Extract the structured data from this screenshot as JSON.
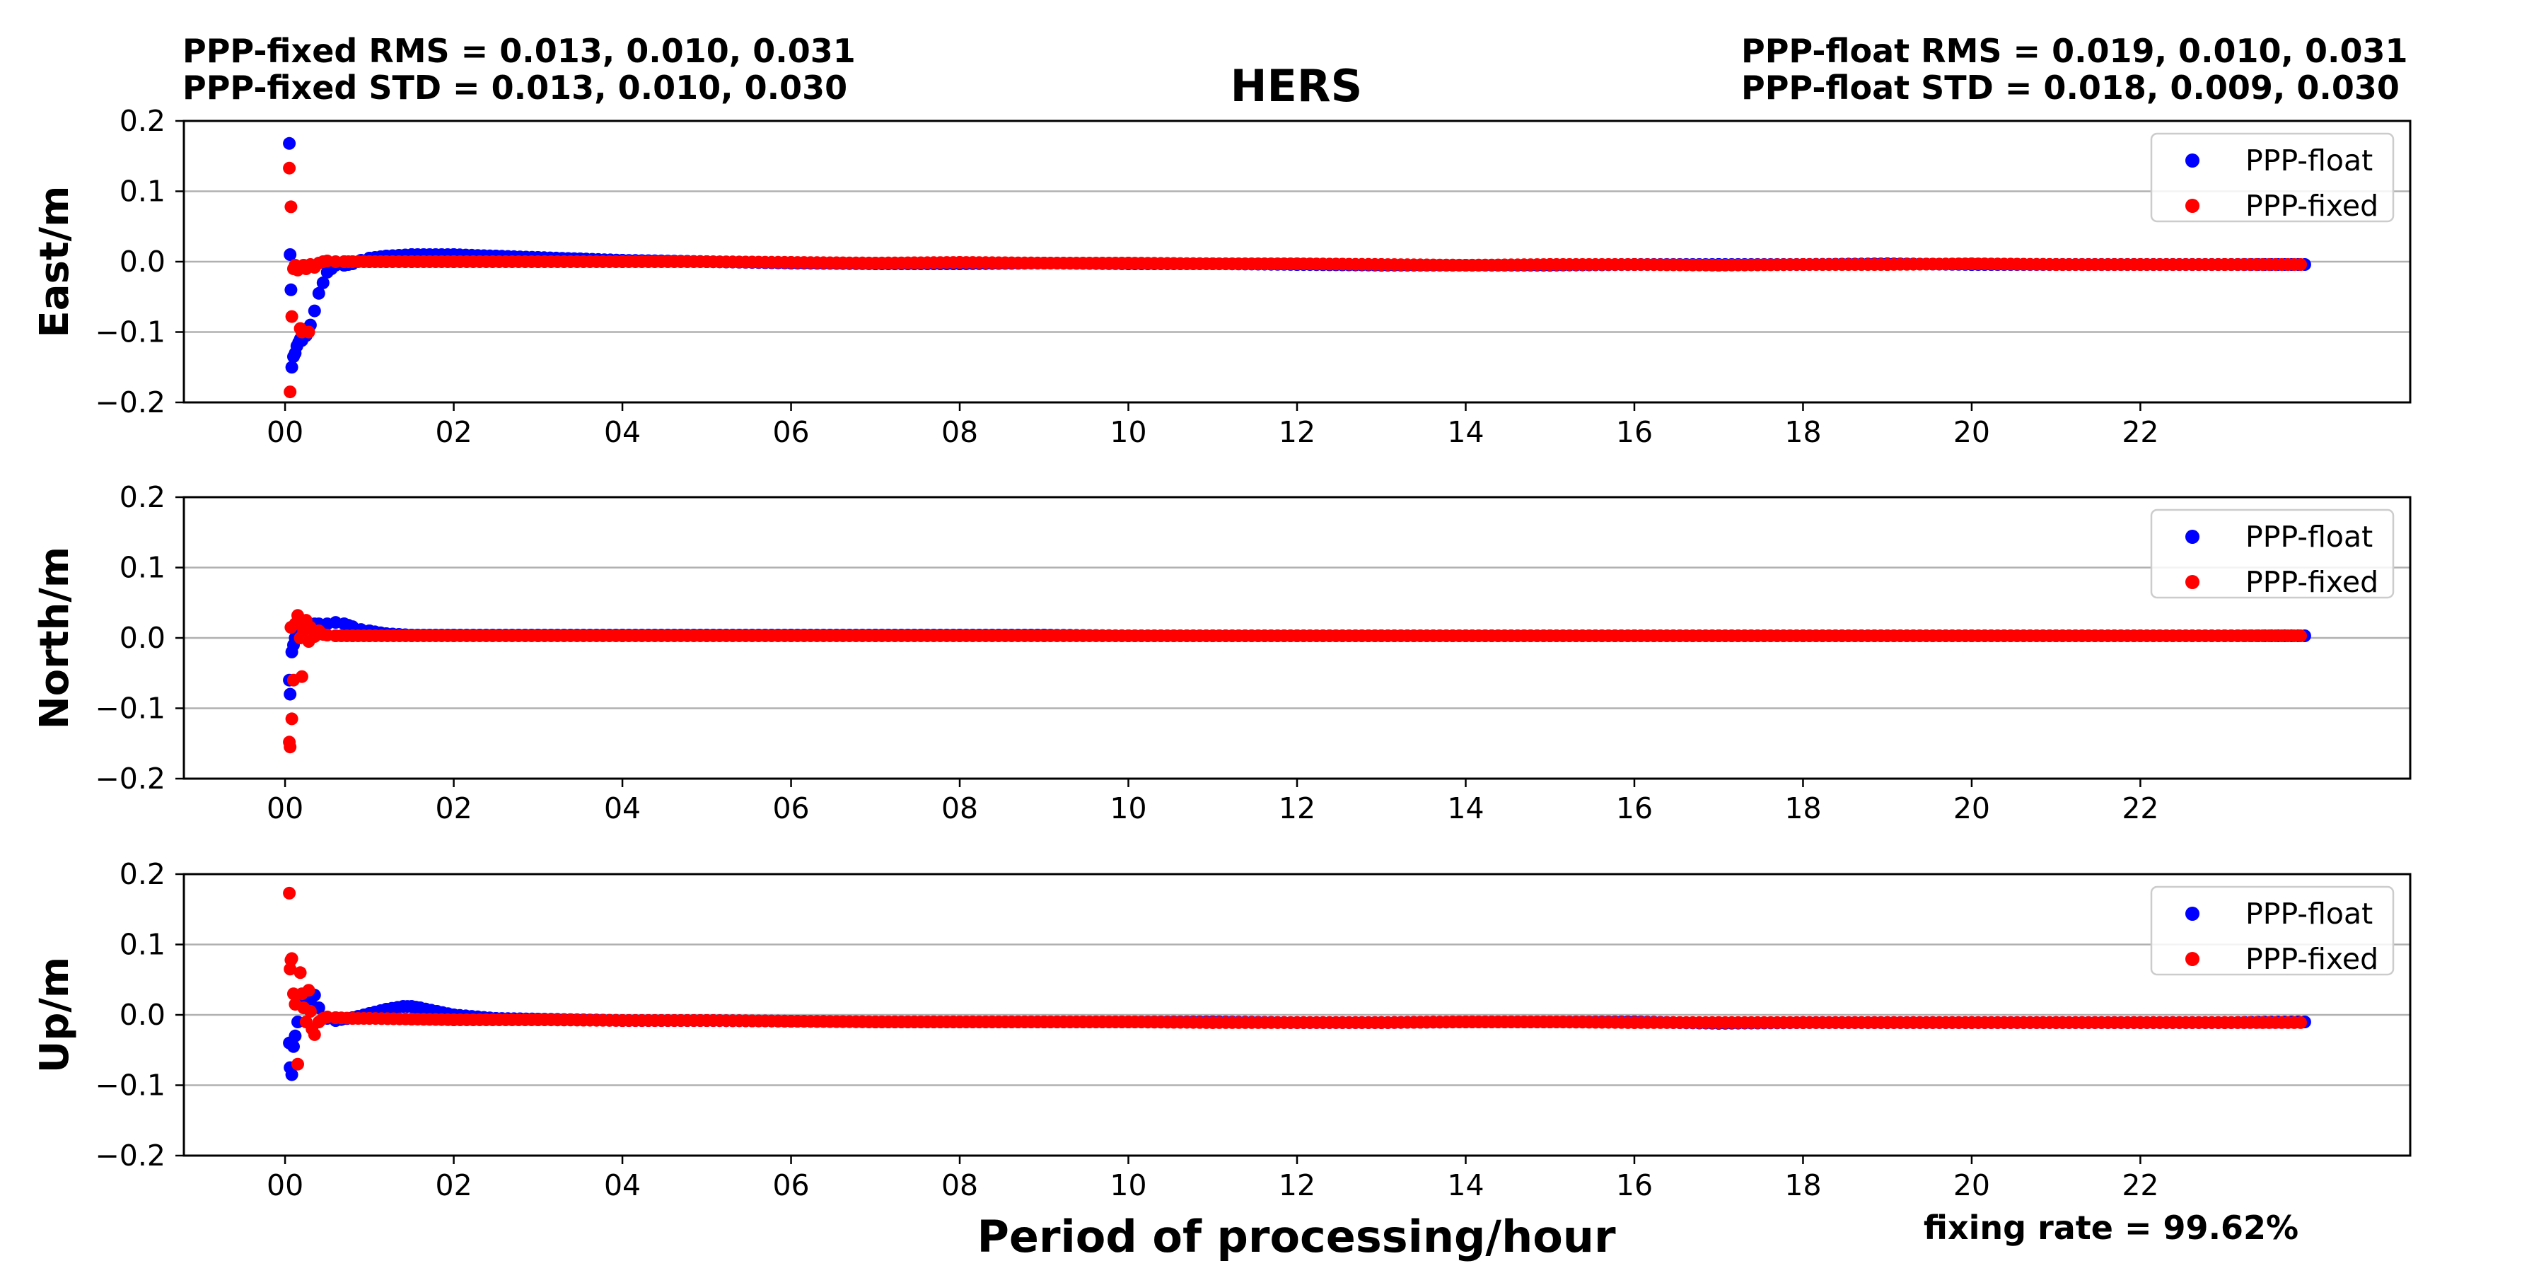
{
  "chart_data": {
    "type": "scatter",
    "title": "HERS",
    "xlabel": "Period of processing/hour",
    "stats": {
      "fixed_rms": "PPP-fixed RMS =  0.013, 0.010, 0.031",
      "fixed_std": "PPP-fixed STD =  0.013, 0.010, 0.030",
      "float_rms": "PPP-float RMS =  0.019, 0.010, 0.031",
      "float_std": "PPP-float STD =  0.018, 0.009, 0.030",
      "fixing_rate": "fixing rate =  99.62%"
    },
    "x_ticks": [
      "00",
      "02",
      "04",
      "06",
      "08",
      "10",
      "12",
      "14",
      "16",
      "18",
      "20",
      "22"
    ],
    "x_tick_values": [
      0,
      2,
      4,
      6,
      8,
      10,
      12,
      14,
      16,
      18,
      20,
      22
    ],
    "y_ticks": [
      "0.2",
      "0.1",
      "0.0",
      "−0.1",
      "−0.2"
    ],
    "y_tick_values": [
      0.2,
      0.1,
      0.0,
      -0.1,
      -0.2
    ],
    "xlim": [
      -1.2,
      25.2
    ],
    "ylim": [
      -0.2,
      0.2
    ],
    "grid": "horizontal",
    "legend_position": "top-right",
    "colors": {
      "float": "#0000ff",
      "fixed": "#ff0000"
    },
    "panels": [
      {
        "ylabel": "East/m",
        "series": [
          {
            "name": "PPP-float",
            "color": "#0000ff",
            "x": [
              0.05,
              0.06,
              0.07,
              0.08,
              0.1,
              0.12,
              0.14,
              0.16,
              0.18,
              0.2,
              0.25,
              0.3,
              0.35,
              0.4,
              0.45,
              0.5,
              0.55,
              0.6,
              0.7,
              0.8,
              0.9,
              1.0,
              1.2,
              1.5,
              2.0,
              2.5,
              3.0,
              3.5,
              4.0,
              5.0,
              6.0,
              7.0,
              8.0,
              9.0,
              10.0,
              11.0,
              12.0,
              13.0,
              14.0,
              15.0,
              16.0,
              17.0,
              18.0,
              19.0,
              20.0,
              21.0,
              22.0,
              23.0,
              23.95
            ],
            "y": [
              0.168,
              0.01,
              -0.04,
              -0.15,
              -0.135,
              -0.13,
              -0.12,
              -0.115,
              -0.11,
              -0.112,
              -0.105,
              -0.09,
              -0.07,
              -0.045,
              -0.03,
              -0.015,
              -0.01,
              -0.005,
              -0.005,
              -0.003,
              0.002,
              0.005,
              0.008,
              0.01,
              0.01,
              0.008,
              0.006,
              0.004,
              0.002,
              0.0,
              -0.002,
              -0.003,
              -0.003,
              -0.002,
              -0.003,
              -0.003,
              -0.004,
              -0.005,
              -0.005,
              -0.005,
              -0.004,
              -0.004,
              -0.004,
              -0.003,
              -0.004,
              -0.004,
              -0.004,
              -0.004,
              -0.004
            ]
          },
          {
            "name": "PPP-fixed",
            "color": "#ff0000",
            "x": [
              0.05,
              0.06,
              0.07,
              0.08,
              0.1,
              0.12,
              0.15,
              0.18,
              0.2,
              0.22,
              0.25,
              0.28,
              0.3,
              0.35,
              0.4,
              0.45,
              0.5,
              0.6,
              0.7,
              0.8,
              1.0,
              1.2,
              1.5,
              2.0,
              3.0,
              4.0,
              5.0,
              6.0,
              7.0,
              8.0,
              9.0,
              10.0,
              11.0,
              12.0,
              13.0,
              14.0,
              15.0,
              16.0,
              17.0,
              18.0,
              19.0,
              20.0,
              21.0,
              22.0,
              23.0,
              23.9
            ],
            "y": [
              0.133,
              -0.185,
              0.078,
              -0.078,
              -0.01,
              -0.005,
              -0.012,
              -0.095,
              -0.1,
              -0.005,
              -0.01,
              -0.1,
              -0.004,
              -0.008,
              -0.002,
              0.0,
              0.001,
              0.0,
              0.0,
              0.0,
              0.0,
              0.0,
              0.0,
              0.0,
              0.0,
              0.0,
              0.0,
              -0.001,
              -0.002,
              -0.001,
              -0.002,
              -0.002,
              -0.003,
              -0.003,
              -0.004,
              -0.005,
              -0.004,
              -0.004,
              -0.005,
              -0.004,
              -0.004,
              -0.003,
              -0.004,
              -0.004,
              -0.004,
              -0.004
            ]
          }
        ]
      },
      {
        "ylabel": "North/m",
        "series": [
          {
            "name": "PPP-float",
            "color": "#0000ff",
            "x": [
              0.05,
              0.06,
              0.08,
              0.1,
              0.12,
              0.15,
              0.2,
              0.25,
              0.3,
              0.35,
              0.4,
              0.5,
              0.6,
              0.7,
              0.8,
              0.9,
              1.0,
              1.2,
              1.5,
              2.0,
              3.0,
              4.0,
              5.0,
              6.0,
              7.0,
              8.0,
              9.0,
              10.0,
              11.0,
              12.0,
              13.0,
              14.0,
              15.0,
              16.0,
              17.0,
              18.0,
              19.0,
              20.0,
              21.0,
              22.0,
              23.0,
              23.95
            ],
            "y": [
              -0.06,
              -0.08,
              -0.02,
              -0.01,
              0.0,
              0.01,
              0.015,
              0.02,
              0.015,
              0.02,
              0.02,
              0.02,
              0.022,
              0.02,
              0.016,
              0.012,
              0.01,
              0.006,
              0.004,
              0.004,
              0.004,
              0.004,
              0.004,
              0.004,
              0.004,
              0.004,
              0.004,
              0.003,
              0.003,
              0.003,
              0.003,
              0.003,
              0.003,
              0.003,
              0.003,
              0.003,
              0.003,
              0.003,
              0.003,
              0.003,
              0.003,
              0.003
            ]
          },
          {
            "name": "PPP-fixed",
            "color": "#ff0000",
            "x": [
              0.05,
              0.06,
              0.07,
              0.08,
              0.1,
              0.12,
              0.15,
              0.18,
              0.2,
              0.22,
              0.25,
              0.28,
              0.3,
              0.35,
              0.4,
              0.45,
              0.5,
              0.6,
              0.8,
              1.0,
              1.5,
              2.0,
              3.0,
              4.0,
              5.0,
              6.0,
              7.0,
              8.0,
              9.0,
              10.0,
              11.0,
              12.0,
              13.0,
              14.0,
              15.0,
              16.0,
              17.0,
              18.0,
              19.0,
              20.0,
              21.0,
              22.0,
              23.0,
              23.9
            ],
            "y": [
              -0.148,
              -0.155,
              0.015,
              -0.115,
              -0.06,
              0.02,
              0.032,
              0.0,
              -0.055,
              0.01,
              0.025,
              -0.005,
              0.015,
              0.002,
              0.01,
              0.005,
              0.004,
              0.003,
              0.003,
              0.003,
              0.003,
              0.003,
              0.003,
              0.003,
              0.003,
              0.003,
              0.003,
              0.003,
              0.003,
              0.003,
              0.003,
              0.003,
              0.003,
              0.003,
              0.003,
              0.003,
              0.003,
              0.003,
              0.003,
              0.003,
              0.003,
              0.003,
              0.003,
              0.003
            ]
          }
        ]
      },
      {
        "ylabel": "Up/m",
        "series": [
          {
            "name": "PPP-float",
            "color": "#0000ff",
            "x": [
              0.05,
              0.06,
              0.08,
              0.1,
              0.12,
              0.15,
              0.2,
              0.25,
              0.3,
              0.35,
              0.4,
              0.5,
              0.6,
              0.8,
              1.0,
              1.2,
              1.4,
              1.5,
              1.6,
              1.8,
              2.0,
              2.5,
              3.0,
              4.0,
              5.0,
              6.0,
              7.0,
              8.0,
              9.0,
              10.0,
              11.0,
              12.0,
              13.0,
              14.0,
              15.0,
              16.0,
              17.0,
              18.0,
              19.0,
              20.0,
              21.0,
              22.0,
              23.0,
              23.95
            ],
            "y": [
              -0.04,
              -0.075,
              -0.085,
              -0.045,
              -0.03,
              -0.01,
              0.02,
              0.015,
              0.02,
              0.028,
              0.01,
              -0.005,
              -0.008,
              -0.004,
              0.002,
              0.008,
              0.012,
              0.012,
              0.01,
              0.005,
              0.0,
              -0.005,
              -0.006,
              -0.008,
              -0.008,
              -0.009,
              -0.01,
              -0.01,
              -0.01,
              -0.01,
              -0.01,
              -0.011,
              -0.011,
              -0.01,
              -0.01,
              -0.01,
              -0.012,
              -0.011,
              -0.011,
              -0.011,
              -0.011,
              -0.011,
              -0.011,
              -0.01
            ]
          },
          {
            "name": "PPP-fixed",
            "color": "#ff0000",
            "x": [
              0.05,
              0.06,
              0.07,
              0.08,
              0.1,
              0.12,
              0.15,
              0.18,
              0.2,
              0.22,
              0.25,
              0.28,
              0.3,
              0.32,
              0.35,
              0.4,
              0.45,
              0.5,
              0.6,
              0.8,
              1.0,
              1.5,
              2.0,
              3.0,
              4.0,
              5.0,
              6.0,
              7.0,
              8.0,
              9.0,
              10.0,
              11.0,
              12.0,
              13.0,
              14.0,
              15.0,
              16.0,
              17.0,
              18.0,
              19.0,
              20.0,
              21.0,
              22.0,
              23.0,
              23.9
            ],
            "y": [
              0.173,
              0.065,
              0.078,
              0.08,
              0.03,
              0.015,
              -0.07,
              0.06,
              0.03,
              0.01,
              -0.01,
              0.035,
              0.005,
              -0.02,
              -0.028,
              -0.01,
              -0.005,
              -0.003,
              -0.004,
              -0.005,
              -0.005,
              -0.006,
              -0.007,
              -0.007,
              -0.008,
              -0.008,
              -0.009,
              -0.01,
              -0.01,
              -0.01,
              -0.01,
              -0.011,
              -0.011,
              -0.011,
              -0.01,
              -0.01,
              -0.011,
              -0.011,
              -0.011,
              -0.011,
              -0.011,
              -0.011,
              -0.011,
              -0.011,
              -0.011
            ]
          }
        ]
      }
    ]
  }
}
